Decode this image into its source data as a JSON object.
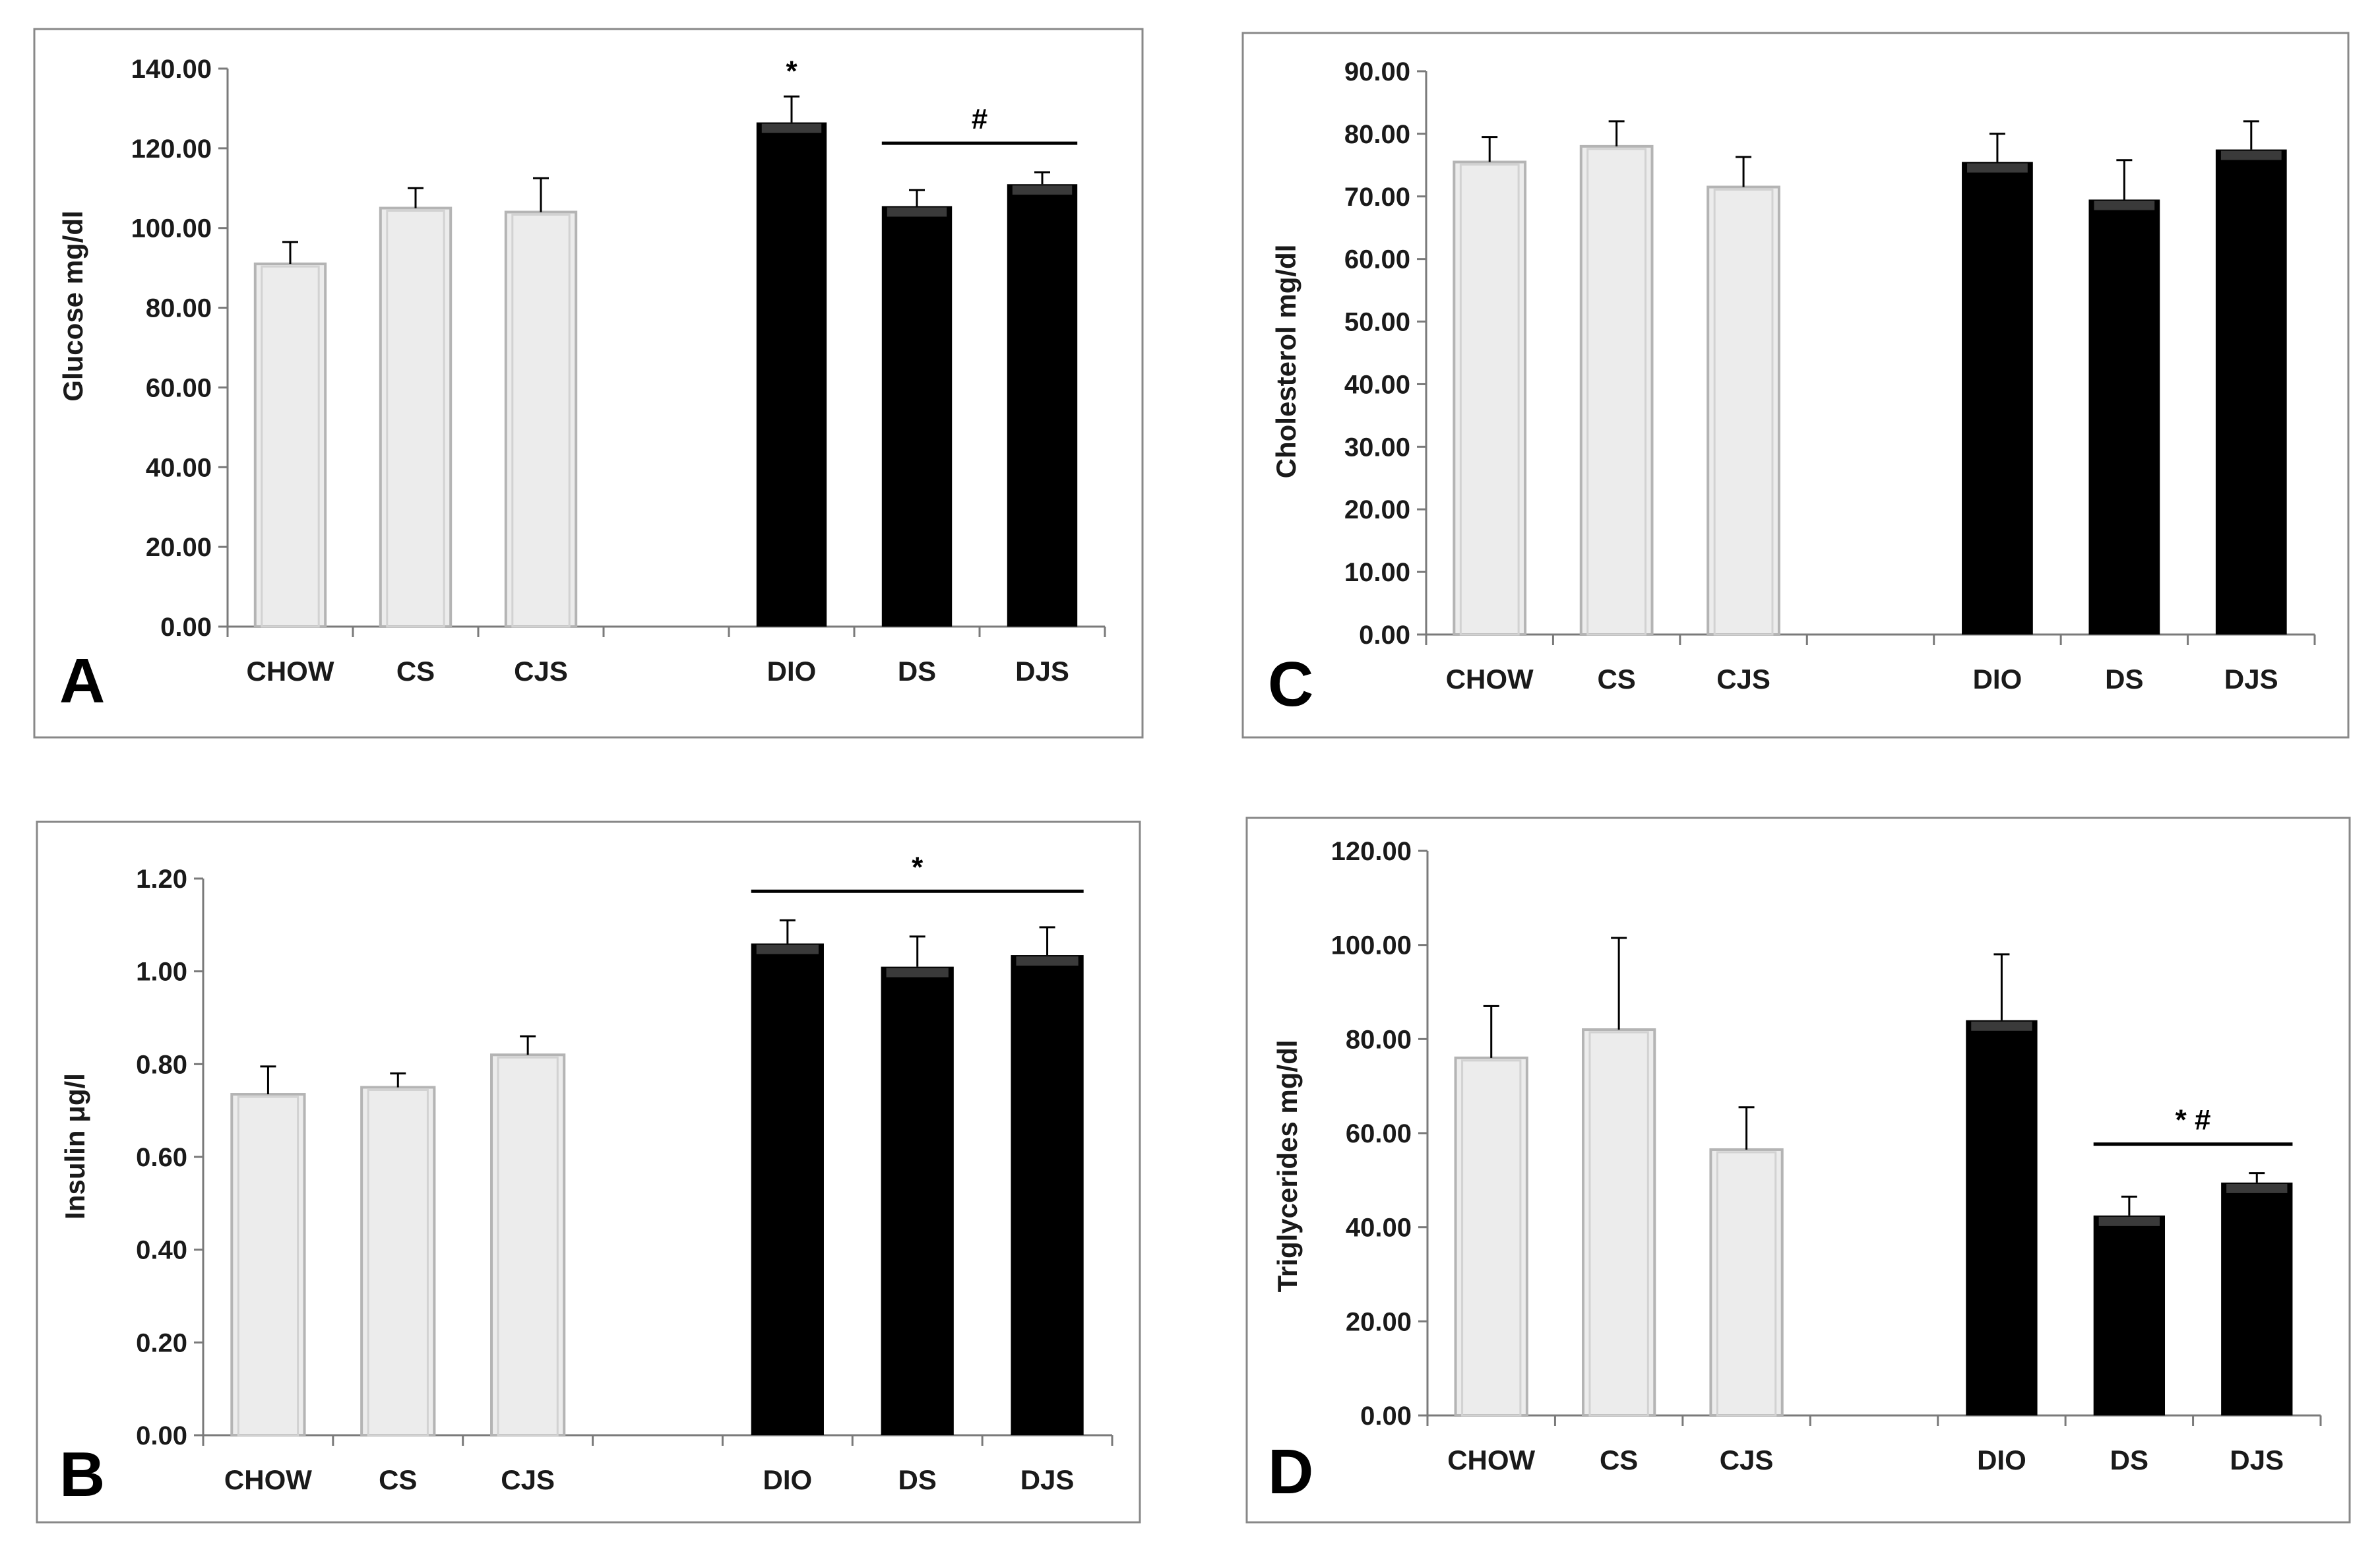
{
  "colors": {
    "control_fill": "#ececec",
    "control_edge": "#b4b4b4",
    "diet_fill": "#000000",
    "frame": "#888888",
    "axis": "#7a7a7a"
  },
  "chart_data": [
    {
      "id": "A",
      "type": "bar",
      "panel_label": "A",
      "title": "",
      "xlabel": "",
      "ylabel": "Glucose mg/dl",
      "ylim": [
        0,
        140
      ],
      "tick_step": 20,
      "tick_labels": [
        "0.00",
        "20.00",
        "40.00",
        "60.00",
        "80.00",
        "100.00",
        "120.00",
        "140.00"
      ],
      "categories": [
        "CHOW",
        "CS",
        "CJS",
        "",
        "DIO",
        "DS",
        "DJS"
      ],
      "values": [
        91,
        105,
        104,
        null,
        126.5,
        105.5,
        111
      ],
      "errors": [
        5.5,
        5,
        8.5,
        null,
        6.5,
        4,
        3
      ],
      "groups": [
        "control",
        "control",
        "control",
        null,
        "diet",
        "diet",
        "diet"
      ],
      "annotations": [
        {
          "text": "*",
          "bar": 4
        },
        {
          "text": "#",
          "from": 5,
          "to": 6,
          "line": true
        }
      ],
      "grid": false
    },
    {
      "id": "C",
      "type": "bar",
      "panel_label": "C",
      "title": "",
      "xlabel": "",
      "ylabel": "Cholesterol mg/dl",
      "ylim": [
        0,
        90
      ],
      "tick_step": 10,
      "tick_labels": [
        "0.00",
        "10.00",
        "20.00",
        "30.00",
        "40.00",
        "50.00",
        "60.00",
        "70.00",
        "80.00",
        "90.00"
      ],
      "categories": [
        "CHOW",
        "CS",
        "CJS",
        "",
        "DIO",
        "DS",
        "DJS"
      ],
      "values": [
        75.5,
        78,
        71.5,
        null,
        75.5,
        69.5,
        77.5
      ],
      "errors": [
        4,
        4,
        4.8,
        null,
        4.5,
        6.3,
        4.5
      ],
      "groups": [
        "control",
        "control",
        "control",
        null,
        "diet",
        "diet",
        "diet"
      ],
      "annotations": [],
      "grid": false
    },
    {
      "id": "B",
      "type": "bar",
      "panel_label": "B",
      "title": "",
      "xlabel": "",
      "ylabel": "Insulin  μg/l",
      "ylim": [
        0,
        1.2
      ],
      "tick_step": 0.2,
      "tick_labels": [
        "0.00",
        "0.20",
        "0.40",
        "0.60",
        "0.80",
        "1.00",
        "1.20"
      ],
      "categories": [
        "CHOW",
        "CS",
        "CJS",
        "",
        "DIO",
        "DS",
        "DJS"
      ],
      "values": [
        0.735,
        0.75,
        0.82,
        null,
        1.06,
        1.01,
        1.035
      ],
      "errors": [
        0.06,
        0.03,
        0.04,
        null,
        0.05,
        0.065,
        0.06
      ],
      "groups": [
        "control",
        "control",
        "control",
        null,
        "diet",
        "diet",
        "diet"
      ],
      "annotations": [
        {
          "text": "*",
          "from": 4,
          "to": 6,
          "line": true
        }
      ],
      "grid": false
    },
    {
      "id": "D",
      "type": "bar",
      "panel_label": "D",
      "title": "",
      "xlabel": "",
      "ylabel": "Triglycerides mg/dl",
      "ylim": [
        0,
        120
      ],
      "tick_step": 20,
      "tick_labels": [
        "0.00",
        "20.00",
        "40.00",
        "60.00",
        "80.00",
        "100.00",
        "120.00"
      ],
      "categories": [
        "CHOW",
        "CS",
        "CJS",
        "",
        "DIO",
        "DS",
        "DJS"
      ],
      "values": [
        76,
        82,
        56.5,
        null,
        84,
        42.5,
        49.5
      ],
      "errors": [
        11,
        19.5,
        9,
        null,
        14,
        4,
        2
      ],
      "groups": [
        "control",
        "control",
        "control",
        null,
        "diet",
        "diet",
        "diet"
      ],
      "annotations": [
        {
          "text": "* #",
          "from": 5,
          "to": 6,
          "line": true
        }
      ],
      "grid": false
    }
  ]
}
